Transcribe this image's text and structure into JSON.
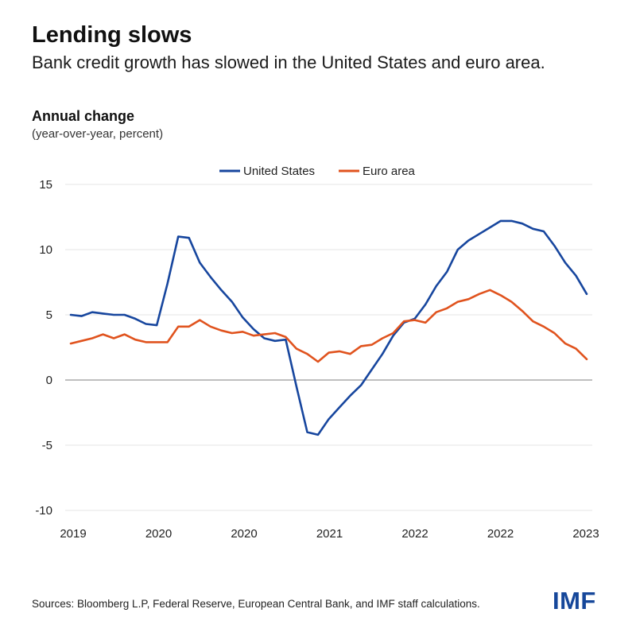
{
  "header": {
    "title": "Lending slows",
    "subtitle": "Bank credit growth has slowed in the United States and euro area."
  },
  "axis": {
    "title": "Annual change",
    "unit": "(year-over-year, percent)"
  },
  "footer": {
    "source": "Sources: Bloomberg L.P, Federal Reserve, European Central Bank, and IMF staff calculations.",
    "logo": "IMF"
  },
  "colors": {
    "united_states": "#17469e",
    "euro_area": "#e0531e",
    "zero_line": "#999999",
    "grid": "#e6e6e6"
  },
  "chart_data": {
    "type": "line",
    "title": "Annual change",
    "ylabel": "(year-over-year, percent)",
    "ylim": [
      -10,
      15
    ],
    "yticks": [
      15,
      10,
      5,
      0,
      -5,
      -10
    ],
    "xtick_labels": [
      "2019",
      "2020",
      "2020",
      "2021",
      "2022",
      "2022",
      "2023"
    ],
    "grid": true,
    "legend": "top-center",
    "series": [
      {
        "name": "United States",
        "color": "#17469e",
        "values": [
          5.0,
          4.9,
          5.2,
          5.1,
          5.0,
          5.0,
          4.7,
          4.3,
          4.2,
          7.4,
          11.0,
          10.9,
          9.0,
          7.9,
          6.9,
          6.0,
          4.8,
          3.9,
          3.2,
          3.0,
          3.1,
          -0.5,
          -4.0,
          -4.2,
          -3.0,
          -2.1,
          -1.2,
          -0.4,
          0.8,
          2.0,
          3.4,
          4.4,
          4.7,
          5.8,
          7.2,
          8.3,
          10.0,
          10.7,
          11.2,
          11.7,
          12.2,
          12.2,
          12.0,
          11.6,
          11.4,
          10.3,
          9.0,
          8.0,
          6.6
        ]
      },
      {
        "name": "Euro area",
        "color": "#e0531e",
        "values": [
          2.8,
          3.0,
          3.2,
          3.5,
          3.2,
          3.5,
          3.1,
          2.9,
          2.9,
          2.9,
          4.1,
          4.1,
          4.6,
          4.1,
          3.8,
          3.6,
          3.7,
          3.4,
          3.5,
          3.6,
          3.3,
          2.4,
          2.0,
          1.4,
          2.1,
          2.2,
          2.0,
          2.6,
          2.7,
          3.2,
          3.6,
          4.5,
          4.6,
          4.4,
          5.2,
          5.5,
          6.0,
          6.2,
          6.6,
          6.9,
          6.5,
          6.0,
          5.3,
          4.5,
          4.1,
          3.6,
          2.8,
          2.4,
          1.6
        ]
      }
    ]
  }
}
